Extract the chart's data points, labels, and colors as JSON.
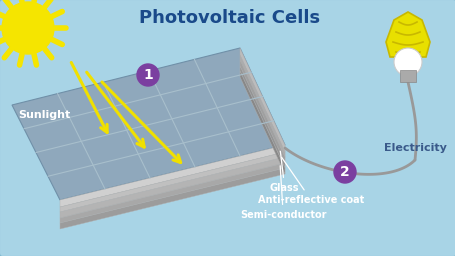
{
  "title": "Photovoltaic Cells",
  "bg_color": "#a8d4e6",
  "title_color": "#1a4a8a",
  "title_fontsize": 13,
  "sunlight_label": "Sunlight",
  "electricity_label": "Electricity",
  "layer_labels": [
    "Glass",
    "Anti-reflective coat",
    "Semi-conductor"
  ],
  "label1": "1",
  "label2": "2",
  "arrow_color": "#f0e000",
  "panel_top_color": "#8fa8bc",
  "panel_grid_color": "#a8bfcc",
  "circle_color": "#7b3fa0",
  "sun_color": "#f5e500",
  "bulb_yellow": "#e8e000",
  "bulb_outline": "#c8b800",
  "wire_color": "#999999",
  "layer_colors": [
    "#d0d0d0",
    "#c0c0c0",
    "#b4b4b4",
    "#a8a8a8",
    "#9c9c9c"
  ],
  "white": "#ffffff",
  "label_color": "#3a5a8a"
}
